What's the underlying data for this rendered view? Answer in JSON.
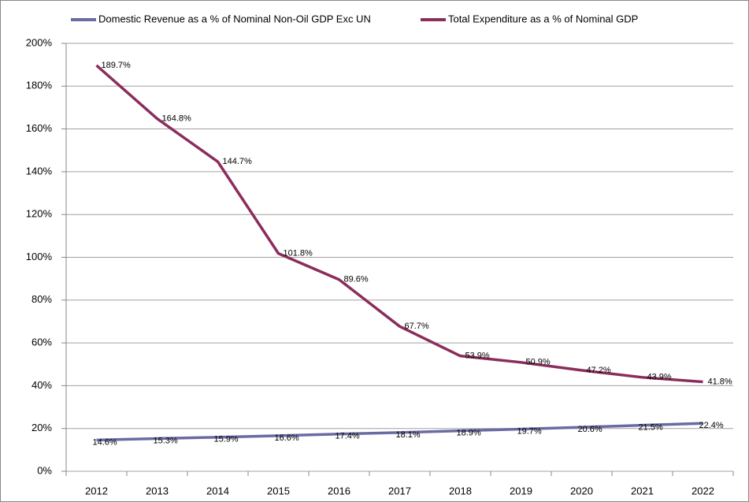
{
  "chart_data": {
    "type": "line",
    "categories": [
      "2012",
      "2013",
      "2014",
      "2015",
      "2016",
      "2017",
      "2018",
      "2019",
      "2020",
      "2021",
      "2022"
    ],
    "series": [
      {
        "name": "Domestic Revenue as a % of Nominal Non-Oil GDP Exc UN",
        "color": "#6b6ba3",
        "values": [
          14.6,
          15.3,
          15.9,
          16.6,
          17.4,
          18.1,
          18.9,
          19.7,
          20.6,
          21.5,
          22.4
        ],
        "value_labels": [
          "14.6%",
          "15.3%",
          "15.9%",
          "16.6%",
          "17.4%",
          "18.1%",
          "18.9%",
          "19.7%",
          "20.6%",
          "21.5%",
          "22.4%"
        ]
      },
      {
        "name": "Total Expenditure as a % of Nominal GDP",
        "color": "#8b2d5c",
        "values": [
          189.7,
          164.8,
          144.7,
          101.8,
          89.6,
          67.7,
          53.9,
          50.9,
          47.2,
          43.9,
          41.8
        ],
        "value_labels": [
          "189.7%",
          "164.8%",
          "144.7%",
          "101.8%",
          "89.6%",
          "67.7%",
          "53.9%",
          "50.9%",
          "47.2%",
          "43.9%",
          "41.8%"
        ]
      }
    ],
    "ylim": [
      0,
      200
    ],
    "yticks": [
      {
        "value": 0,
        "label": "0%"
      },
      {
        "value": 20,
        "label": "20%"
      },
      {
        "value": 40,
        "label": "40%"
      },
      {
        "value": 60,
        "label": "60%"
      },
      {
        "value": 80,
        "label": "80%"
      },
      {
        "value": 100,
        "label": "100%"
      },
      {
        "value": 120,
        "label": "120%"
      },
      {
        "value": 140,
        "label": "140%"
      },
      {
        "value": 160,
        "label": "160%"
      },
      {
        "value": 180,
        "label": "180%"
      },
      {
        "value": 200,
        "label": "200%"
      }
    ],
    "grid": true
  }
}
